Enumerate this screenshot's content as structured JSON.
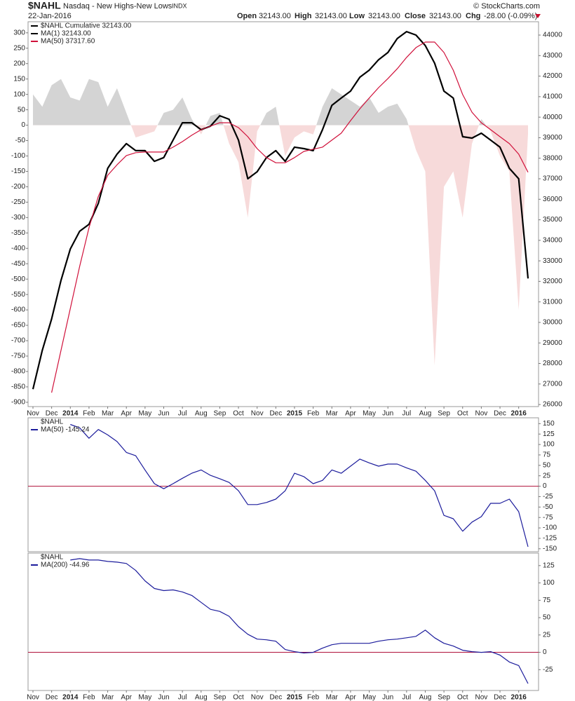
{
  "header": {
    "symbol": "$NAHL",
    "description": "Nasdaq - New Highs-New Lows",
    "exchange": "INDX",
    "date": "22-Jan-2016",
    "credit": "© StockCharts.com",
    "quote": [
      {
        "label": "Open",
        "value": "32143.00"
      },
      {
        "label": "High",
        "value": "32143.00"
      },
      {
        "label": "Low",
        "value": "32143.00"
      },
      {
        "label": "Close",
        "value": "32143.00"
      },
      {
        "label": "Chg",
        "value": "-28.00 (-0.09%)"
      }
    ]
  },
  "chart_data": [
    {
      "type": "line",
      "yaxis_side": "left",
      "categories": [
        "Nov",
        null,
        "Dec",
        null,
        "2014",
        null,
        "Feb",
        null,
        "Mar",
        null,
        "Apr",
        null,
        "May",
        null,
        "Jun",
        null,
        "Jul",
        null,
        "Aug",
        null,
        "Sep",
        null,
        "Oct",
        null,
        "Nov",
        null,
        "Dec",
        null,
        "2015",
        null,
        "Feb",
        null,
        "Mar",
        null,
        "Apr",
        null,
        "May",
        null,
        "Jun",
        null,
        "Jul",
        null,
        "Aug",
        null,
        "Sep",
        null,
        "Oct",
        null,
        "Nov",
        null,
        "Dec",
        null,
        "2016",
        null
      ],
      "ylim": [
        -914,
        336
      ],
      "yticks": [
        -900,
        -850,
        -800,
        -750,
        -700,
        -650,
        -600,
        -550,
        -500,
        -450,
        -400,
        -350,
        -300,
        -250,
        -200,
        -150,
        -100,
        -50,
        0,
        50,
        100,
        150,
        200,
        250,
        300
      ],
      "y2lim": [
        25900,
        44650
      ],
      "y2ticks": [
        26000,
        27000,
        28000,
        29000,
        30000,
        31000,
        32000,
        33000,
        34000,
        35000,
        36000,
        37000,
        38000,
        39000,
        40000,
        41000,
        42000,
        43000,
        44000
      ],
      "series": [
        {
          "type": "area",
          "color": "#d4d4d4",
          "negative_color": "#f7dada",
          "values": [
            100,
            60,
            130,
            150,
            90,
            80,
            150,
            140,
            60,
            120,
            40,
            -40,
            -30,
            -20,
            40,
            50,
            90,
            20,
            -30,
            30,
            40,
            -60,
            -120,
            -300,
            -20,
            40,
            60,
            -100,
            -40,
            -20,
            -30,
            60,
            120,
            100,
            80,
            60,
            90,
            40,
            60,
            70,
            20,
            -80,
            -150,
            -780,
            -200,
            -150,
            -300,
            -60,
            20,
            -20,
            -100,
            -150,
            -600,
            -28
          ]
        },
        {
          "type": "line",
          "name": "$NAHL Cumulative 32143.00",
          "color": "#000000",
          "axis": "y2",
          "values": [
            26750,
            28640,
            30170,
            32050,
            33580,
            34440,
            34780,
            35800,
            37510,
            38200,
            38710,
            38370,
            38370,
            37850,
            38030,
            38880,
            39730,
            39730,
            39390,
            39560,
            40070,
            39900,
            38880,
            37000,
            37340,
            38030,
            38370,
            37850,
            38540,
            38470,
            38370,
            39390,
            40580,
            40930,
            41270,
            41950,
            42290,
            42800,
            43150,
            43830,
            44170,
            44000,
            43490,
            42630,
            41270,
            40930,
            39050,
            38980,
            39220,
            38880,
            38540,
            37510,
            37000,
            32143
          ]
        },
        {
          "type": "line",
          "name": "MA(1) 32143.00",
          "color": "#000000",
          "axis": "y2",
          "values": [
            26750,
            28640,
            30170,
            32050,
            33580,
            34440,
            34780,
            35800,
            37510,
            38200,
            38710,
            38370,
            38370,
            37850,
            38030,
            38880,
            39730,
            39730,
            39390,
            39560,
            40070,
            39900,
            38880,
            37000,
            37340,
            38030,
            38370,
            37850,
            38540,
            38470,
            38370,
            39390,
            40580,
            40930,
            41270,
            41950,
            42290,
            42800,
            43150,
            43830,
            44170,
            44000,
            43490,
            42630,
            41270,
            40930,
            39050,
            38980,
            39220,
            38880,
            38540,
            37510,
            37000,
            32143
          ]
        },
        {
          "type": "line",
          "name": "MA(50) 37317.60",
          "color": "#d0103a",
          "axis": "y2",
          "values": [
            null,
            null,
            26580,
            28640,
            30680,
            32730,
            34610,
            36140,
            37170,
            37680,
            38130,
            38270,
            38300,
            38300,
            38300,
            38540,
            38810,
            39120,
            39390,
            39560,
            39730,
            39730,
            39490,
            39050,
            38470,
            38030,
            37780,
            37780,
            38030,
            38330,
            38440,
            38540,
            38880,
            39220,
            39830,
            40410,
            40930,
            41440,
            41880,
            42360,
            42910,
            43390,
            43660,
            43660,
            43150,
            42290,
            41100,
            40240,
            39730,
            39390,
            39050,
            38710,
            38200,
            37317.6
          ]
        }
      ]
    },
    {
      "type": "line",
      "yaxis_side": "right",
      "legend_title": "$NAHL",
      "zero_line_color": "#b0103a",
      "ylim": [
        -157,
        164
      ],
      "yticks": [
        -150,
        -125,
        -100,
        -75,
        -50,
        -25,
        0,
        25,
        50,
        75,
        100,
        125,
        150
      ],
      "series": [
        {
          "type": "line",
          "name": "MA(50) -145.24",
          "color": "#1c1c9c",
          "values": [
            null,
            null,
            null,
            null,
            148,
            140,
            115,
            136,
            123,
            107,
            81,
            73,
            39,
            6,
            -6,
            6,
            19,
            31,
            39,
            26,
            18,
            9,
            -11,
            -44,
            -44,
            -39,
            -31,
            -11,
            31,
            23,
            6,
            14,
            39,
            31,
            48,
            65,
            56,
            48,
            53,
            53,
            44,
            36,
            14,
            -11,
            -70,
            -78,
            -108,
            -86,
            -73,
            -41,
            -41,
            -31,
            -61,
            -145.24
          ]
        }
      ]
    },
    {
      "type": "line",
      "yaxis_side": "right",
      "legend_title": "$NAHL",
      "zero_line_color": "#b0103a",
      "categories": [
        "Nov",
        null,
        "Dec",
        null,
        "2014",
        null,
        "Feb",
        null,
        "Mar",
        null,
        "Apr",
        null,
        "May",
        null,
        "Jun",
        null,
        "Jul",
        null,
        "Aug",
        null,
        "Sep",
        null,
        "Oct",
        null,
        "Nov",
        null,
        "Dec",
        null,
        "2015",
        null,
        "Feb",
        null,
        "Mar",
        null,
        "Apr",
        null,
        "May",
        null,
        "Jun",
        null,
        "Jul",
        null,
        "Aug",
        null,
        "Sep",
        null,
        "Oct",
        null,
        "Nov",
        null,
        "Dec",
        null,
        "2016",
        null
      ],
      "ylim": [
        -55,
        143
      ],
      "yticks": [
        -25,
        0,
        25,
        50,
        75,
        100,
        125
      ],
      "series": [
        {
          "type": "line",
          "name": "MA(200) -44.96",
          "color": "#1c1c9c",
          "values": [
            null,
            null,
            null,
            null,
            133,
            135,
            133,
            133,
            131,
            130,
            128,
            118,
            103,
            92,
            89,
            90,
            87,
            82,
            72,
            62,
            59,
            52,
            37,
            26,
            19,
            18,
            16,
            4,
            1,
            -1,
            0,
            6,
            11,
            13,
            13,
            13,
            13,
            16,
            18,
            19,
            21,
            23,
            32,
            21,
            13,
            9,
            3,
            1,
            0,
            1,
            -4,
            -14,
            -19,
            -44.96
          ]
        }
      ]
    }
  ]
}
